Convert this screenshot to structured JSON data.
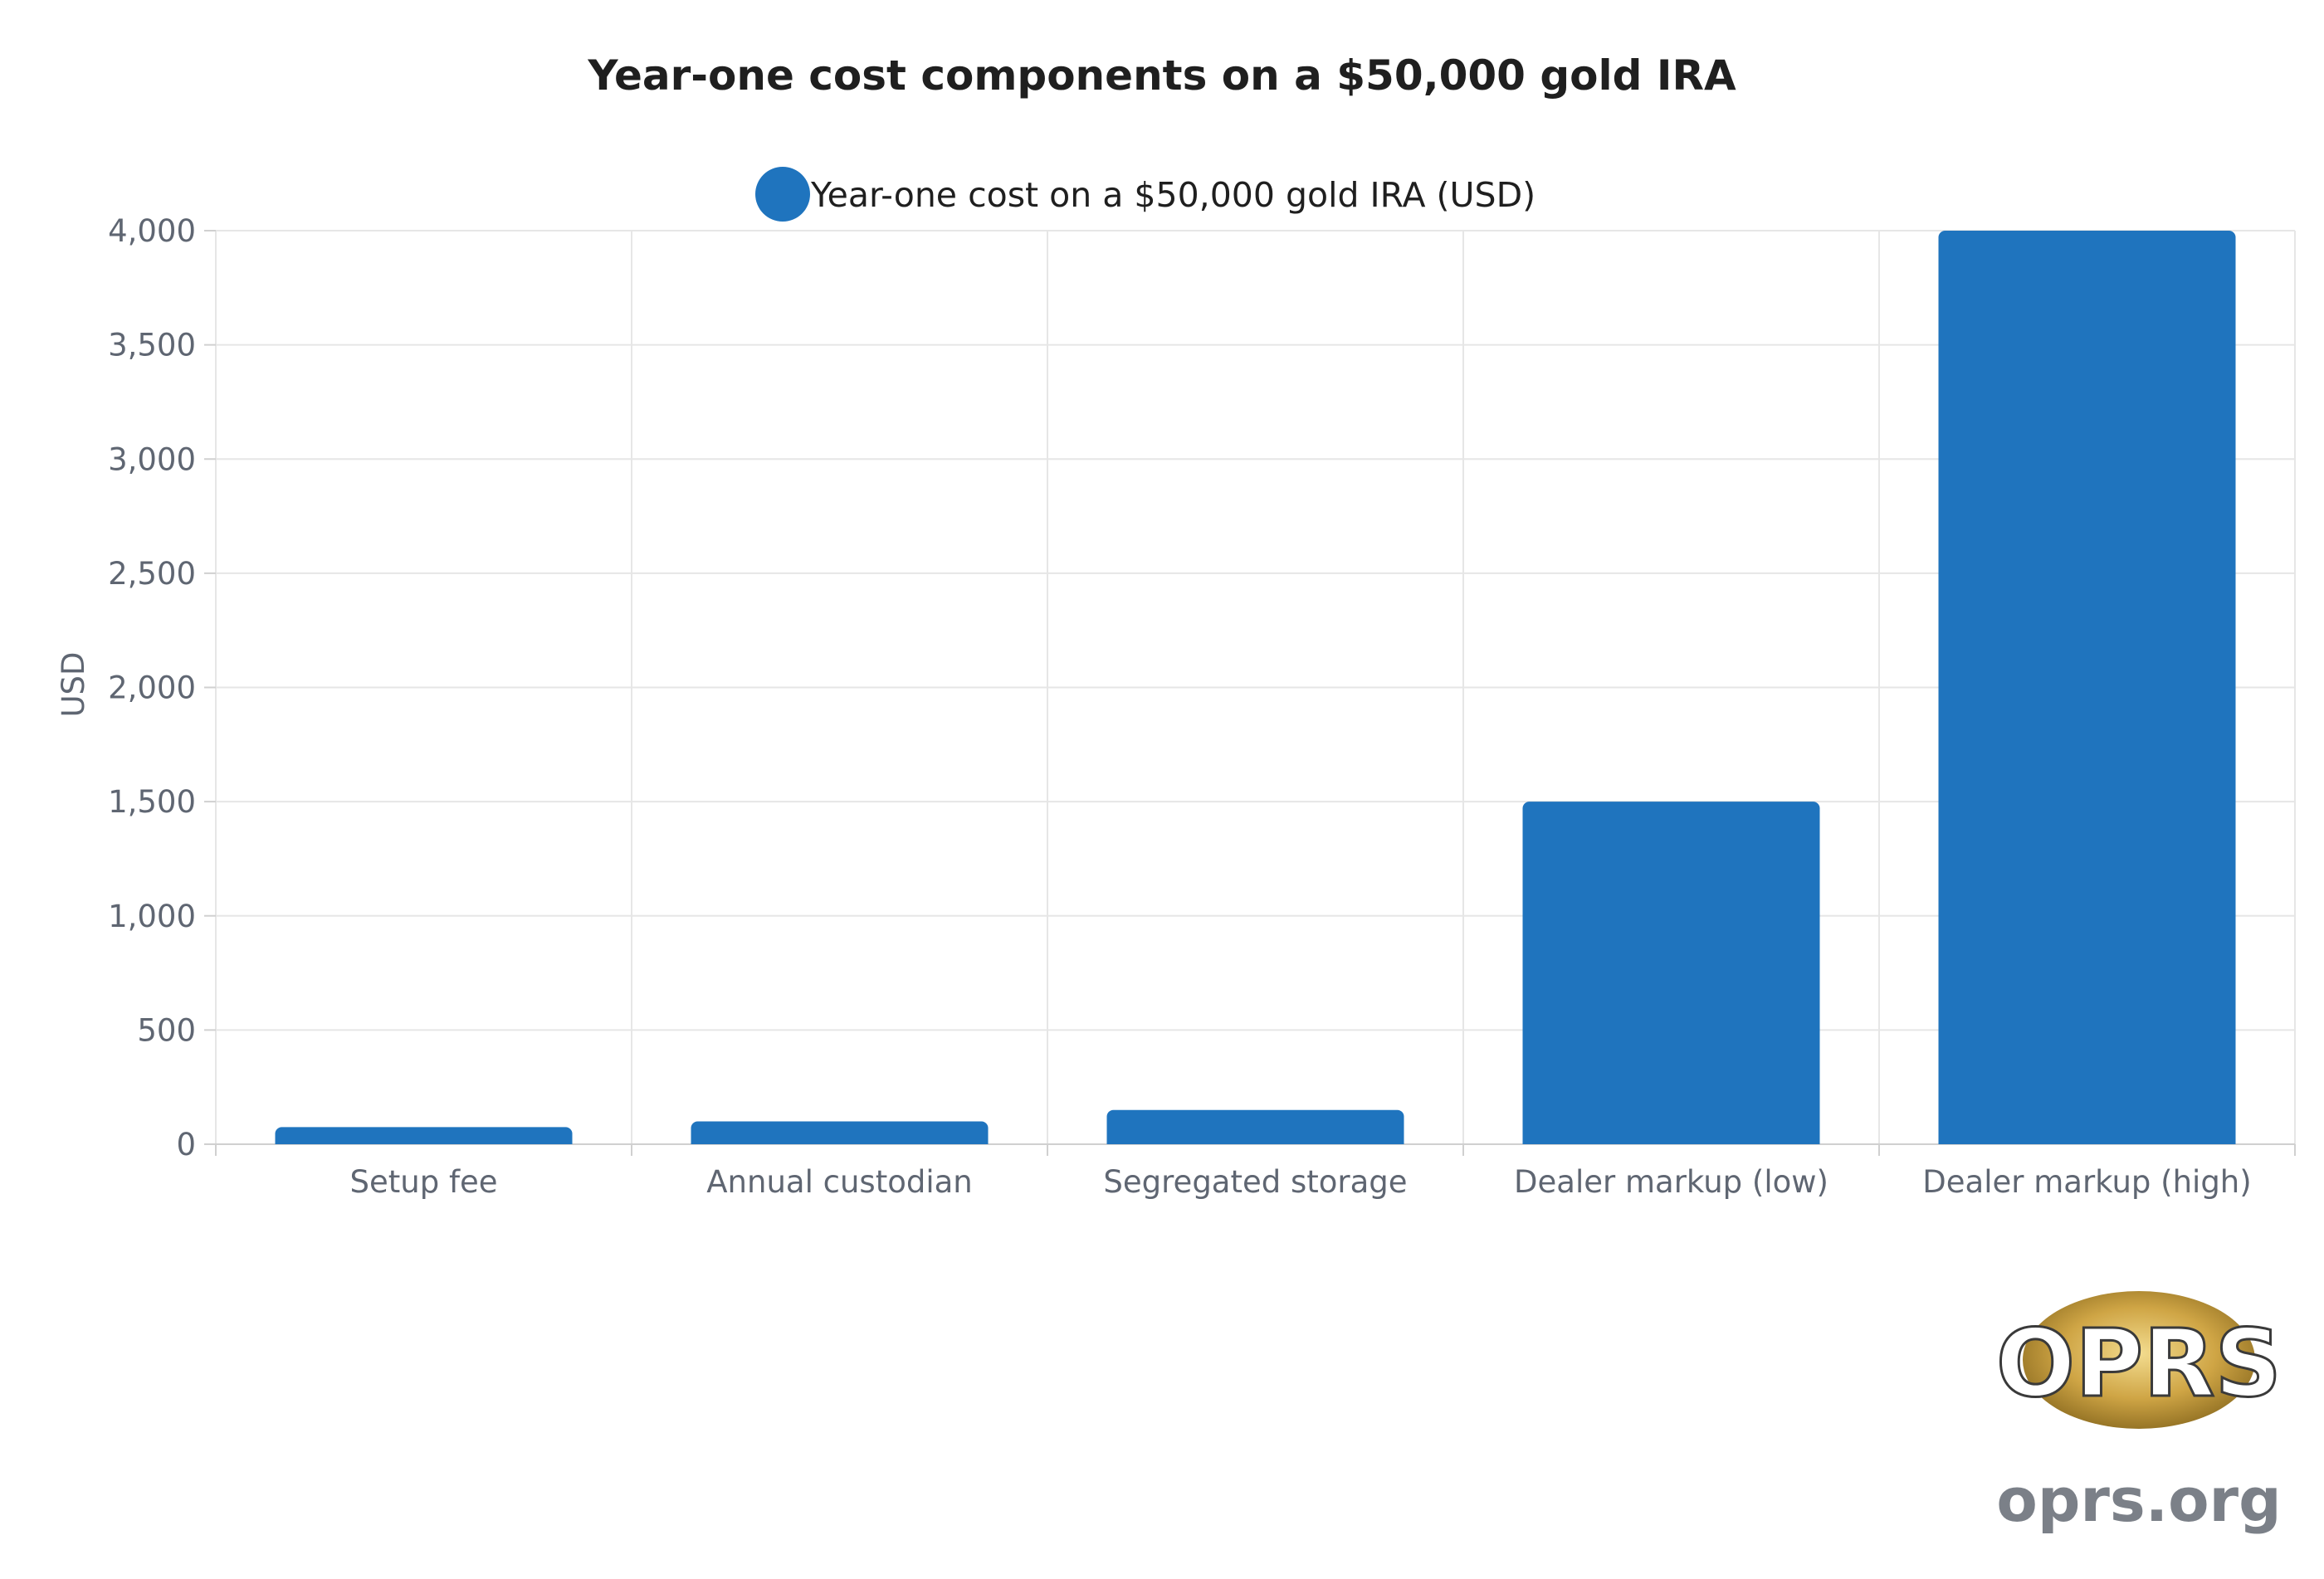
{
  "chart_data": {
    "type": "bar",
    "title": "Year-one cost components on a $50,000 gold IRA",
    "categories": [
      "Setup fee",
      "Annual custodian",
      "Segregated storage",
      "Dealer markup (low)",
      "Dealer markup (high)"
    ],
    "series": [
      {
        "name": "Year-one cost on a $50,000 gold IRA (USD)",
        "values": [
          75,
          100,
          150,
          1500,
          4000
        ]
      }
    ],
    "xlabel": "",
    "ylabel": "USD",
    "ylim": [
      0,
      4000
    ],
    "yticks": [
      "0",
      "500",
      "1,000",
      "1,500",
      "2,000",
      "2,500",
      "3,000",
      "3,500",
      "4,000"
    ],
    "ytick_values": [
      0,
      500,
      1000,
      1500,
      2000,
      2500,
      3000,
      3500,
      4000
    ],
    "grid": true,
    "legend_position": "top-center",
    "colors": {
      "bar": "#1f74be",
      "grid": "#e6e6e6",
      "text": "#5f6672"
    }
  },
  "branding": {
    "logo_text": "OPRS",
    "site": "oprs.org"
  }
}
